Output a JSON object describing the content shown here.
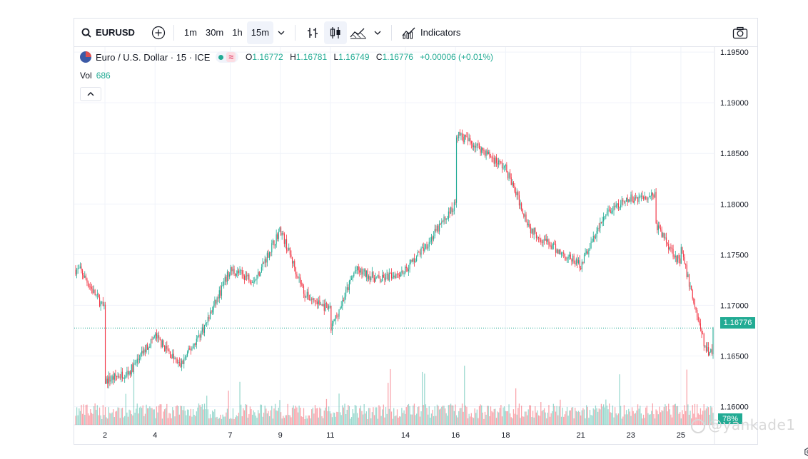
{
  "toolbar": {
    "symbol": "EURUSD",
    "intervals": [
      "1m",
      "30m",
      "1h",
      "15m"
    ],
    "active_interval": "15m",
    "indicators_label": "Indicators"
  },
  "legend": {
    "title": "Euro / U.S. Dollar · 15 · ICE",
    "approx_symbol": "≈",
    "open_label": "O",
    "open": "1.16772",
    "high_label": "H",
    "high": "1.16781",
    "low_label": "L",
    "low": "1.16749",
    "close_label": "C",
    "close": "1.16776",
    "change": "+0.00006 (+0.01%)",
    "volume_label": "Vol",
    "volume": "686"
  },
  "colors": {
    "up": "#22ab94",
    "down": "#f23645",
    "accent": "#2962ff"
  },
  "price_axis_labels": [
    "1.19500",
    "1.19000",
    "1.18500",
    "1.18000",
    "1.17500",
    "1.17000",
    "1.16500",
    "1.16000"
  ],
  "current_price_tag": "1.16776",
  "volume_tag": "78%",
  "watermark": "@yankade1",
  "chart_data": {
    "type": "candlestick",
    "x_tick_labels": [
      "2",
      "4",
      "7",
      "9",
      "11",
      "14",
      "16",
      "18",
      "21",
      "23",
      "25"
    ],
    "ylim": [
      1.1575,
      1.1955
    ],
    "last_price": 1.16776,
    "path": [
      {
        "x": "1",
        "y": 1.1735
      },
      {
        "x": "2",
        "y": 1.1695
      },
      {
        "x": "2",
        "y": 1.1625
      },
      {
        "x": "3",
        "y": 1.1635
      },
      {
        "x": "4",
        "y": 1.167
      },
      {
        "x": "5",
        "y": 1.164
      },
      {
        "x": "6",
        "y": 1.168
      },
      {
        "x": "7",
        "y": 1.1735
      },
      {
        "x": "8",
        "y": 1.1725
      },
      {
        "x": "9",
        "y": 1.1775
      },
      {
        "x": "10",
        "y": 1.171
      },
      {
        "x": "11",
        "y": 1.1695
      },
      {
        "x": "11",
        "y": 1.1675
      },
      {
        "x": "12",
        "y": 1.1735
      },
      {
        "x": "13",
        "y": 1.1725
      },
      {
        "x": "14",
        "y": 1.1735
      },
      {
        "x": "15",
        "y": 1.1765
      },
      {
        "x": "16",
        "y": 1.18
      },
      {
        "x": "16",
        "y": 1.187
      },
      {
        "x": "17",
        "y": 1.1855
      },
      {
        "x": "18",
        "y": 1.1835
      },
      {
        "x": "19",
        "y": 1.1775
      },
      {
        "x": "20",
        "y": 1.1755
      },
      {
        "x": "21",
        "y": 1.174
      },
      {
        "x": "22",
        "y": 1.179
      },
      {
        "x": "23",
        "y": 1.1805
      },
      {
        "x": "24",
        "y": 1.181
      },
      {
        "x": "24",
        "y": 1.178
      },
      {
        "x": "25",
        "y": 1.174
      },
      {
        "x": "25",
        "y": 1.1755
      },
      {
        "x": "26",
        "y": 1.1655
      },
      {
        "x": "26",
        "y": 1.1678
      }
    ]
  }
}
